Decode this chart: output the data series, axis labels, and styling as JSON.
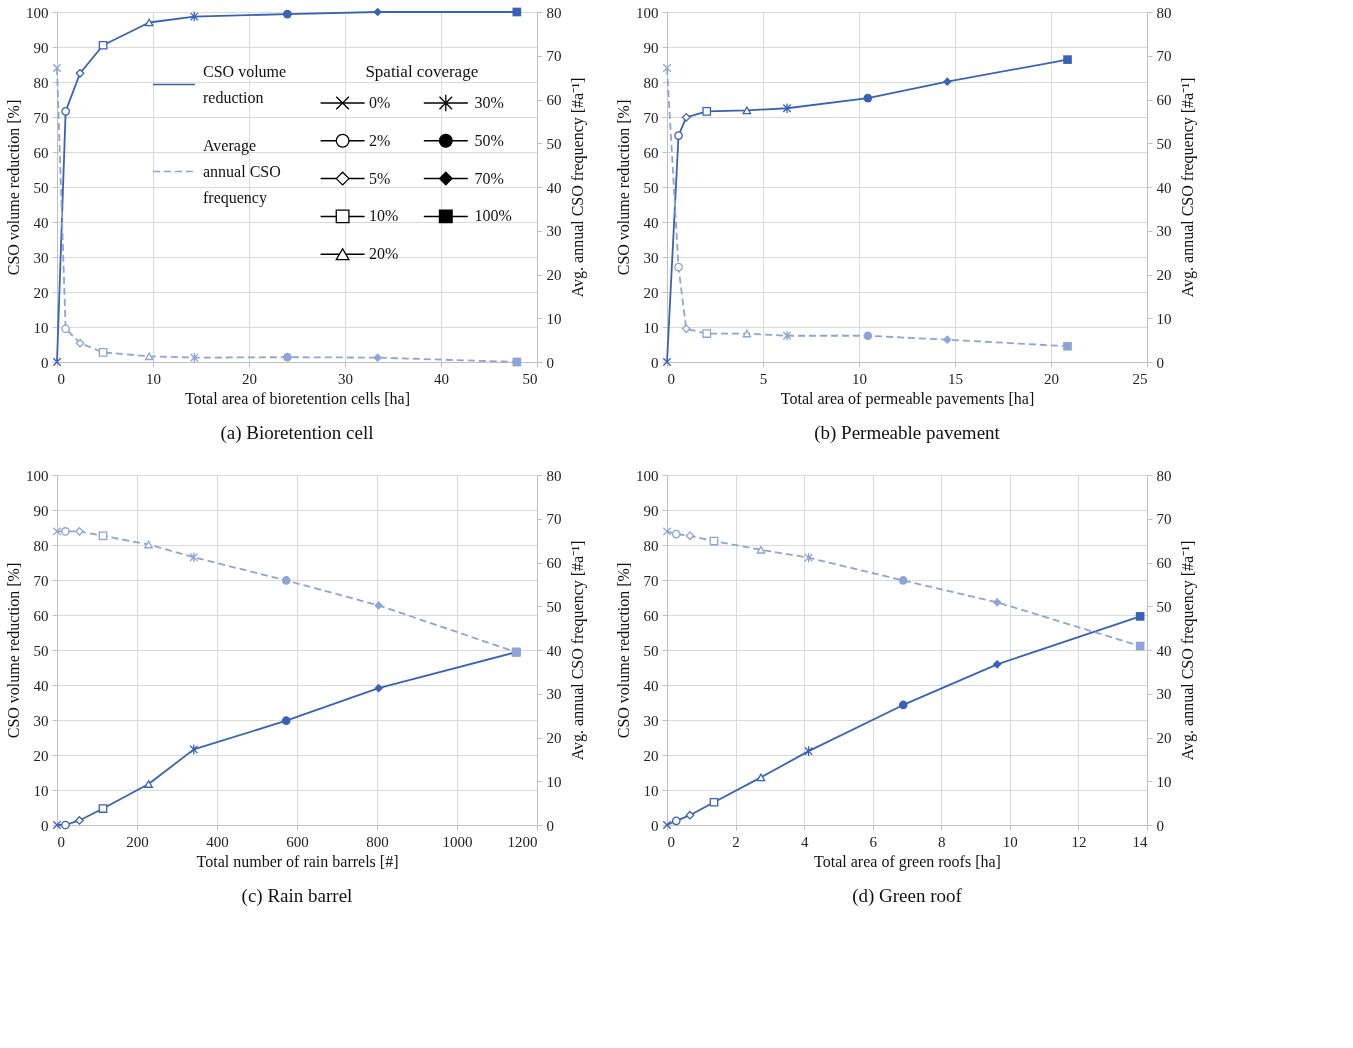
{
  "chart_data": [
    {
      "type": "line",
      "title": "(a)  Bioretention cell",
      "xlabel": "Total area of bioretention cells [ha]",
      "ylabel": "CSO volume reduction [%]",
      "y2label": "Avg. annual CSO frequency [#a⁻¹]",
      "legend": "top left",
      "marker": "cross",
      "legend_title": "Spatial coverage",
      "annotations": [
        "0%",
        "2%",
        "5%",
        "10%",
        "20%",
        "30%",
        "50%",
        "70%",
        "100%"
      ],
      "xlim": [
        0,
        50
      ],
      "xticks": [
        0,
        10,
        20,
        30,
        40,
        50
      ],
      "ylim": [
        0,
        100
      ],
      "yticks": [
        0,
        10,
        20,
        30,
        40,
        50,
        60,
        70,
        80,
        90,
        100
      ],
      "y2lim": [
        0,
        80
      ],
      "y2ticks": [
        0,
        10,
        20,
        30,
        40,
        50,
        60,
        70,
        80
      ],
      "grid": true,
      "series": [
        {
          "name": "CSO volume reduction",
          "color": "#3a62b4",
          "line_style": "solid",
          "x": [
            0,
            0.9,
            2.4,
            4.8,
            9.6,
            14.3,
            24,
            33.4,
            47.9
          ],
          "values": [
            0,
            71.6,
            82.5,
            90.5,
            97,
            98.7,
            99.4,
            100,
            100
          ]
        },
        {
          "name": "Average annual CSO frequency",
          "color": "#8ea3d6",
          "line_style": "dashed",
          "axis": "y2",
          "x": [
            0,
            0.9,
            2.4,
            4.8,
            9.6,
            14.3,
            24,
            33.4,
            47.9
          ],
          "values": [
            67.2,
            7.6,
            4.3,
            2.2,
            1.3,
            1.0,
            1.1,
            1.0,
            0
          ]
        }
      ]
    },
    {
      "type": "line",
      "title": "(b)  Permeable pavement",
      "xlabel": "Total area of permeable pavements [ha]",
      "marker": "cross",
      "ylabel": "CSO volume reduction [%]",
      "y2label": "Avg. annual CSO frequency [#a⁻¹]",
      "xlim": [
        0,
        25
      ],
      "xticks": [
        0,
        5,
        10,
        15,
        20,
        25
      ],
      "ylim": [
        0,
        100
      ],
      "yticks": [
        0,
        10,
        20,
        30,
        40,
        50,
        60,
        70,
        80,
        90,
        100
      ],
      "y2lim": [
        0,
        80
      ],
      "y2ticks": [
        0,
        10,
        20,
        30,
        40,
        50,
        60,
        70,
        80
      ],
      "grid": true,
      "series": [
        {
          "color": "#3a62b4",
          "line_style": "solid",
          "x": [
            0,
            0.6,
            1.0,
            2.07,
            4.16,
            6.25,
            10.46,
            14.6,
            20.86
          ],
          "values": [
            0,
            64.7,
            69.9,
            71.6,
            71.9,
            72.5,
            75.4,
            80.1,
            86.4
          ]
        },
        {
          "color": "#8ea3d6",
          "line_style": "dashed",
          "axis": "y2",
          "x": [
            0,
            0.6,
            1.0,
            2.07,
            4.16,
            6.25,
            10.46,
            14.6,
            20.86
          ],
          "values": [
            67.2,
            21.7,
            7.6,
            6.5,
            6.5,
            6.0,
            6.0,
            5.1,
            3.6
          ]
        }
      ]
    },
    {
      "type": "line",
      "title": "(c) Rain barrel",
      "xlabel": "Total number of rain barrels [#]",
      "marker": "cross",
      "ylabel": "CSO volume reduction [%]",
      "y2label": "Avg. annual CSO frequency [#a⁻¹]",
      "xlim": [
        0,
        1200
      ],
      "xticks": [
        0,
        200,
        400,
        600,
        800,
        1000,
        1200
      ],
      "ylim": [
        0,
        100
      ],
      "yticks": [
        0,
        10,
        20,
        30,
        40,
        50,
        60,
        70,
        80,
        90,
        100
      ],
      "y2lim": [
        0,
        80
      ],
      "y2ticks": [
        0,
        10,
        20,
        30,
        40,
        50,
        60,
        70,
        80
      ],
      "grid": true,
      "series": [
        {
          "color": "#3a62b4",
          "line_style": "solid",
          "x": [
            0,
            21,
            56,
            115,
            229,
            342,
            573,
            804,
            1148
          ],
          "values": [
            0,
            0,
            1.3,
            4.7,
            11.7,
            21.6,
            29.8,
            39.1,
            49.4
          ]
        },
        {
          "color": "#8ea3d6",
          "line_style": "dashed",
          "axis": "y2",
          "x": [
            0,
            21,
            56,
            115,
            229,
            342,
            573,
            804,
            1148
          ],
          "values": [
            67.1,
            67.1,
            67.1,
            66.1,
            64.1,
            61.2,
            55.9,
            50.2,
            39.5
          ]
        }
      ]
    },
    {
      "type": "line",
      "title": "(d)  Green roof",
      "xlabel": "Total area of green roofs [ha]",
      "marker": "cross",
      "ylabel": "CSO volume reduction [%]",
      "y2label": "Avg. annual CSO frequency [#a⁻¹]",
      "xlim": [
        0,
        14
      ],
      "xticks": [
        0,
        2,
        4,
        6,
        8,
        10,
        12,
        14
      ],
      "ylim": [
        0,
        100
      ],
      "yticks": [
        0,
        10,
        20,
        30,
        40,
        50,
        60,
        70,
        80,
        90,
        100
      ],
      "y2lim": [
        0,
        80
      ],
      "y2ticks": [
        0,
        10,
        20,
        30,
        40,
        50,
        60,
        70,
        80
      ],
      "grid": true,
      "series": [
        {
          "color": "#3a62b4",
          "line_style": "solid",
          "x": [
            0,
            0.27,
            0.67,
            1.37,
            2.74,
            4.13,
            6.89,
            9.63,
            13.8
          ],
          "values": [
            0,
            1.2,
            2.8,
            6.5,
            13.6,
            21.1,
            34.3,
            45.9,
            59.6
          ]
        },
        {
          "color": "#8ea3d6",
          "line_style": "dashed",
          "axis": "y2",
          "x": [
            0,
            0.27,
            0.67,
            1.37,
            2.74,
            4.13,
            6.89,
            9.63,
            13.8
          ],
          "values": [
            67.1,
            66.5,
            66.1,
            64.9,
            62.9,
            61.1,
            55.9,
            50.9,
            40.9
          ]
        }
      ]
    }
  ]
}
